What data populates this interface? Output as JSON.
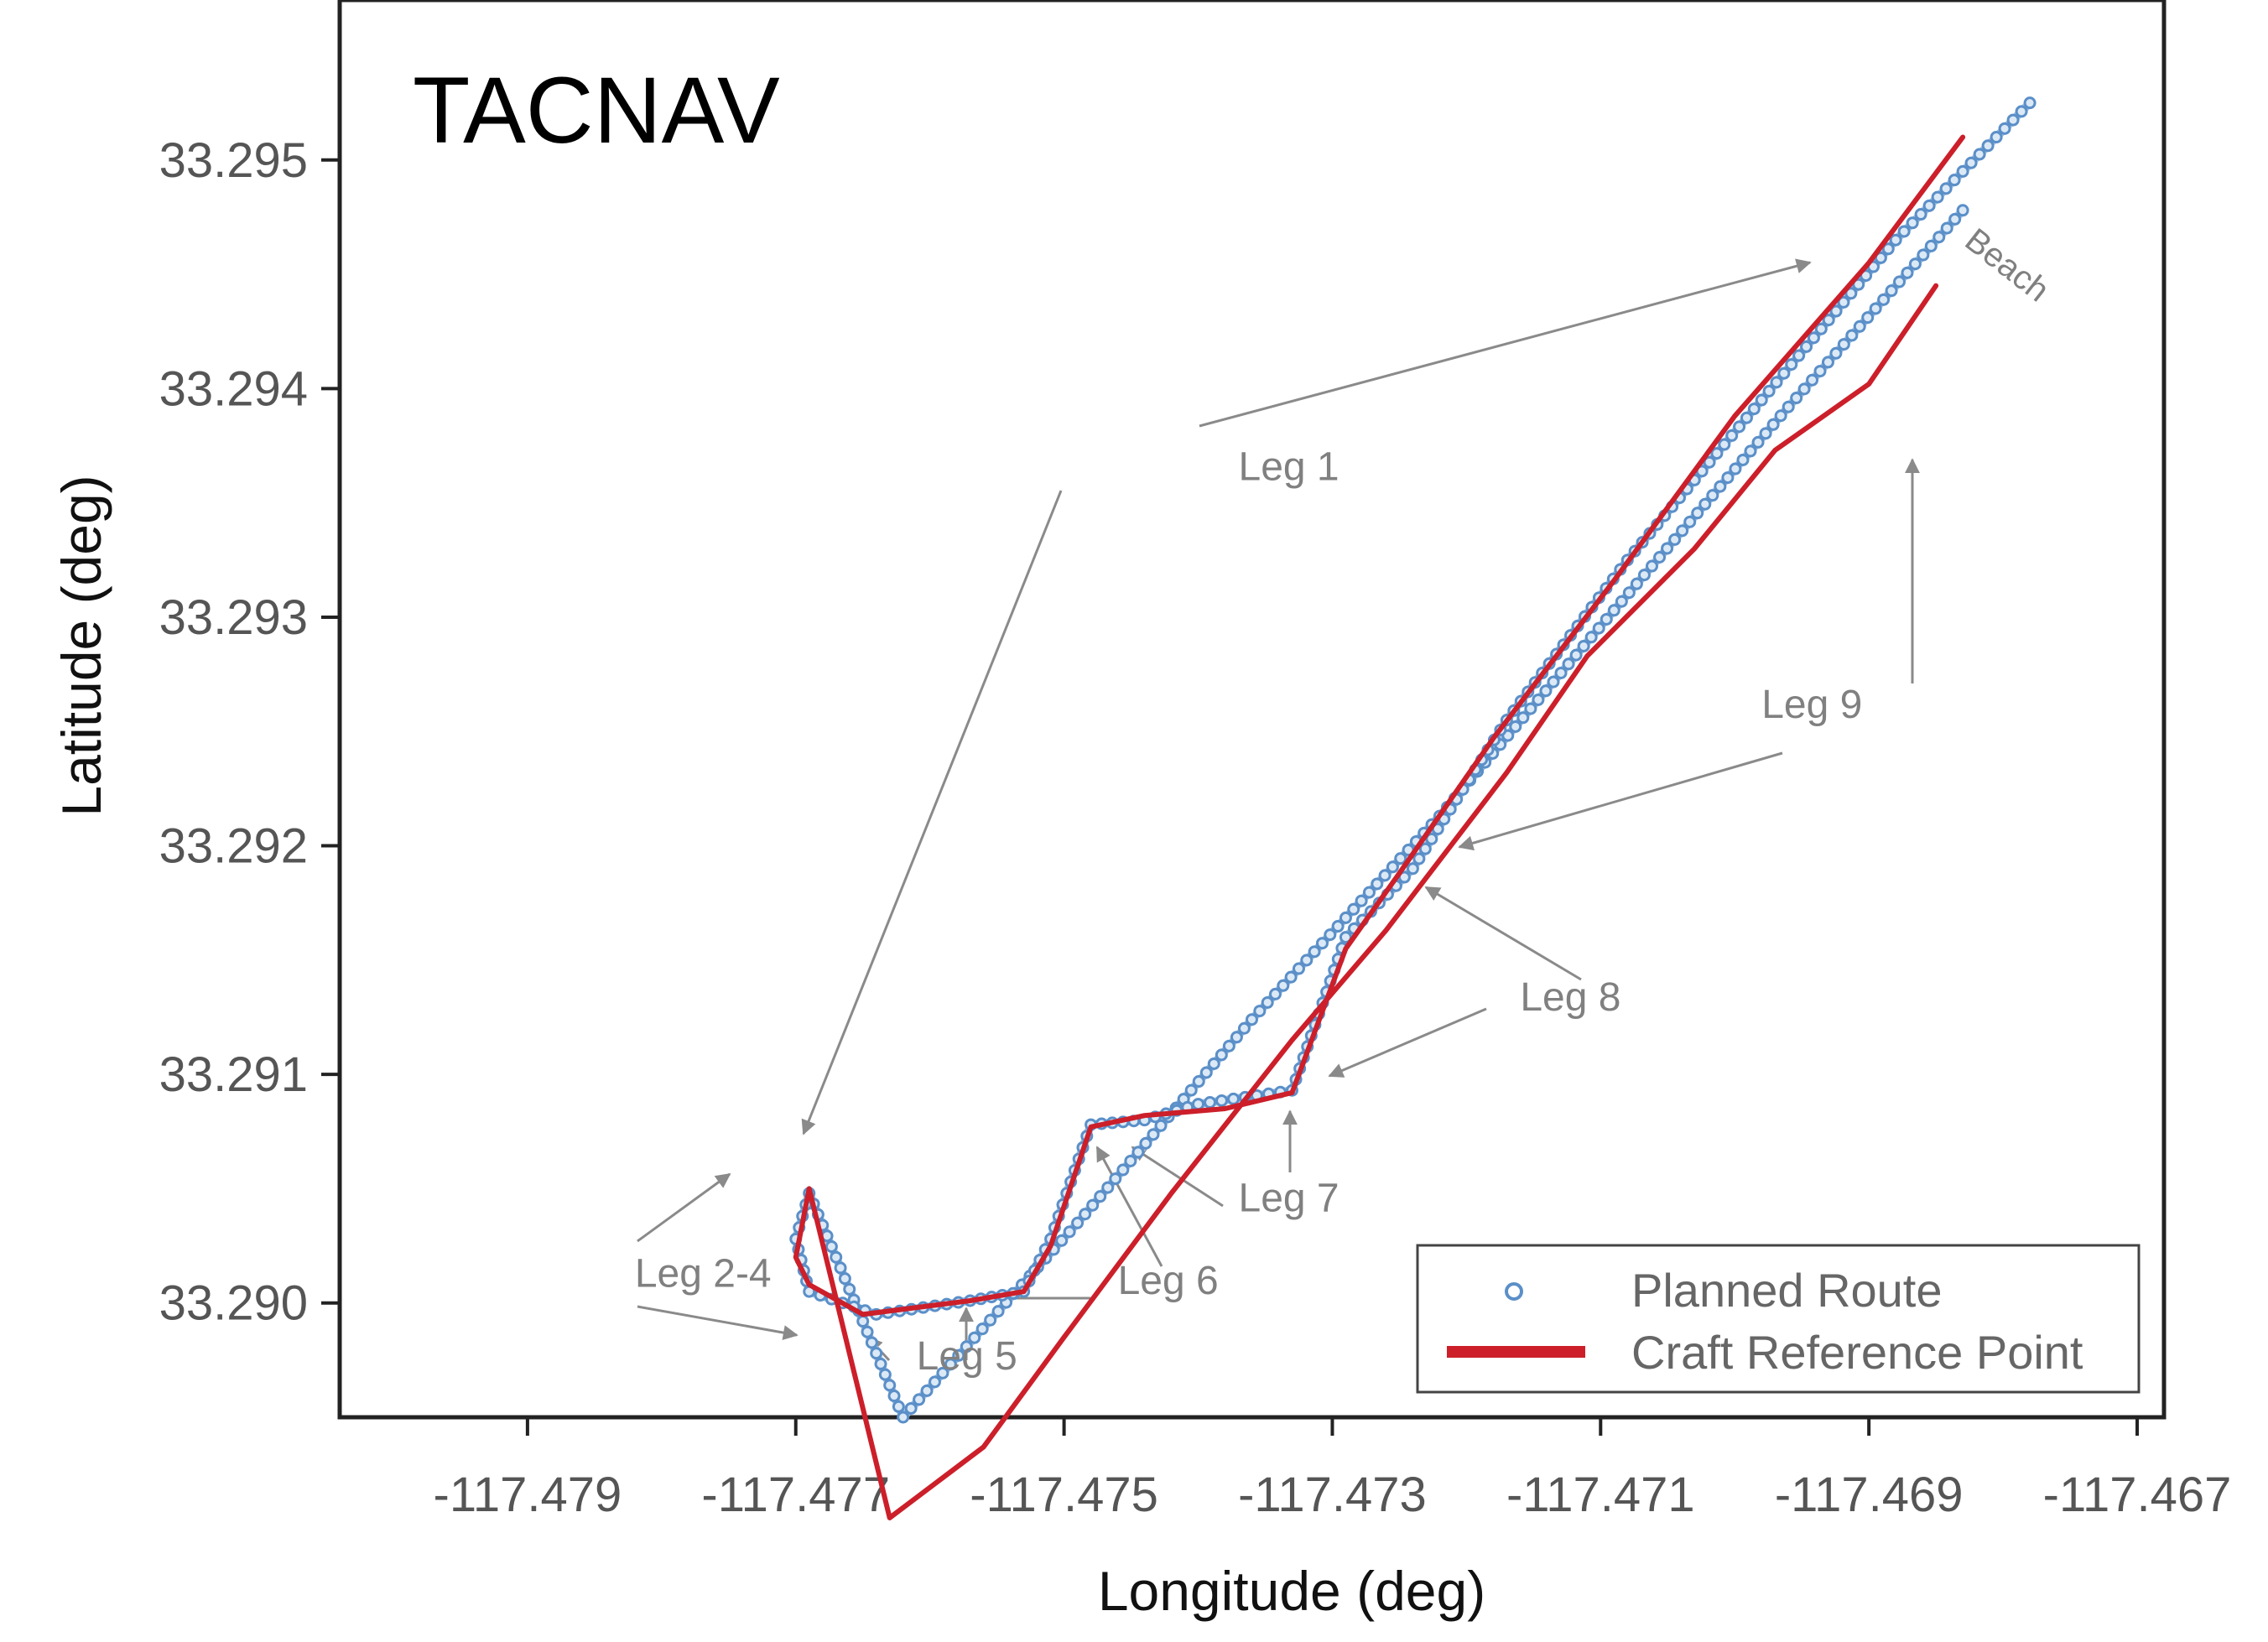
{
  "chart_data": {
    "type": "line",
    "title": "TACNAV",
    "xlabel": "Longitude (deg)",
    "ylabel": "Latitude (deg)",
    "xlim": [
      -117.4804,
      -117.4668
    ],
    "ylim": [
      33.2895,
      33.2957
    ],
    "xticks": [
      -117.479,
      -117.477,
      -117.475,
      -117.473,
      -117.471,
      -117.469,
      -117.467
    ],
    "xtick_labels": [
      "-117.479",
      "-117.477",
      "-117.475",
      "-117.473",
      "-117.471",
      "-117.469",
      "-117.467"
    ],
    "yticks": [
      33.29,
      33.291,
      33.292,
      33.293,
      33.294,
      33.295
    ],
    "ytick_labels": [
      "33.290",
      "33.291",
      "33.292",
      "33.293",
      "33.294",
      "33.295"
    ],
    "grid": false,
    "legend_position": "bottom-right",
    "series": [
      {
        "name": "Planned Route",
        "style": "markers",
        "color": "#5b8fc8",
        "x": [
          -117.4683,
          -117.4696,
          -117.4709,
          -117.4722,
          -117.4736,
          -117.4749,
          -117.4762,
          -117.4769,
          -117.477,
          -117.4769,
          -117.4764,
          -117.4757,
          -117.4753,
          -117.4751,
          -117.4748,
          -117.4744,
          -117.474,
          -117.4733,
          -117.4729,
          -117.4724,
          -117.4717,
          -117.4708,
          -117.4698,
          -117.4688,
          -117.4678
        ],
        "y": [
          33.29478,
          33.29392,
          33.29303,
          33.29213,
          33.29124,
          33.29035,
          33.2895,
          33.29048,
          33.29028,
          33.29005,
          33.28995,
          33.29001,
          33.29005,
          33.29028,
          33.29078,
          33.2908,
          33.29087,
          33.29093,
          33.2916,
          33.2919,
          33.29255,
          33.29325,
          33.29395,
          33.29465,
          33.29525
        ]
      },
      {
        "name": "Craft Reference Point",
        "style": "line",
        "color": "#cc1f2a",
        "x": [
          -117.4685,
          -117.469,
          -117.4697,
          -117.4703,
          -117.4711,
          -117.4717,
          -117.4726,
          -117.4733,
          -117.4742,
          -117.475,
          -117.4756,
          -117.4763,
          -117.4769,
          -117.477,
          -117.4769,
          -117.4765,
          -117.4761,
          -117.4757,
          -117.4753,
          -117.4751,
          -117.4748,
          -117.4744,
          -117.4738,
          -117.4733,
          -117.4729,
          -117.4725,
          -117.4718,
          -117.4709,
          -117.47,
          -117.469,
          -117.4683
        ],
        "y": [
          33.29445,
          33.29402,
          33.29373,
          33.2933,
          33.29283,
          33.29232,
          33.29163,
          33.29115,
          33.29048,
          33.28985,
          33.28937,
          33.28906,
          33.2905,
          33.2902,
          33.29008,
          33.28995,
          33.28998,
          33.29001,
          33.29005,
          33.29025,
          33.29077,
          33.29082,
          33.29085,
          33.29092,
          33.29155,
          33.29188,
          33.29247,
          33.29316,
          33.29388,
          33.29455,
          33.2951
        ]
      }
    ],
    "annotations": [
      {
        "text": "Leg 1",
        "x": -117.4737,
        "y": 33.2936
      },
      {
        "text": "Leg 2-4",
        "x": -117.4782,
        "y": 33.29007
      },
      {
        "text": "Leg 5",
        "x": -117.4761,
        "y": 33.28971
      },
      {
        "text": "Leg 6",
        "x": -117.4746,
        "y": 33.29004
      },
      {
        "text": "Leg 7",
        "x": -117.4737,
        "y": 33.2904
      },
      {
        "text": "Leg 8",
        "x": -117.4716,
        "y": 33.29128
      },
      {
        "text": "Leg 9",
        "x": -117.4698,
        "y": 33.29256
      },
      {
        "text": "Beach",
        "x": -117.4683,
        "y": 33.29463
      }
    ]
  }
}
